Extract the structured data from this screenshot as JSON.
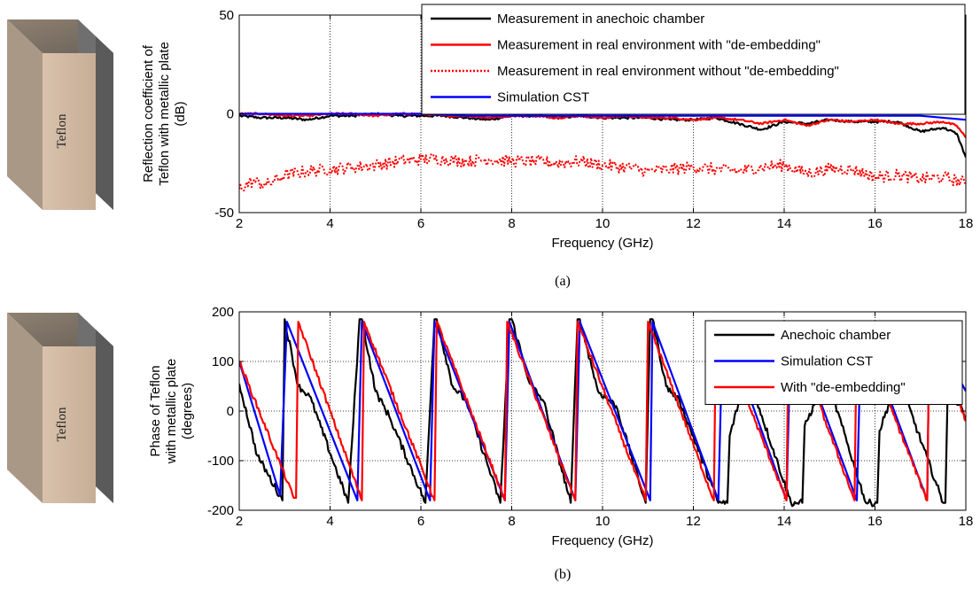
{
  "teflon_label": "Teflon",
  "panels": [
    {
      "caption": "(a)",
      "chart_data": {
        "type": "line",
        "xlabel": "Frequency (GHz)",
        "ylabel": [
          "Reflection coefficient of",
          "Teflon with metallic plate",
          "(dB)"
        ],
        "xlim": [
          2,
          18
        ],
        "ylim": [
          -50,
          50
        ],
        "xticks": [
          2,
          4,
          6,
          8,
          10,
          12,
          14,
          16,
          18
        ],
        "yticks": [
          -50,
          0,
          50
        ],
        "grid": true,
        "legend_position": "top-right",
        "series": [
          {
            "name": "Measurement in anechoic chamber",
            "color": "#000000",
            "style": "solid",
            "noise": 0.6,
            "x": [
              2,
              2.5,
              3,
              3.5,
              4,
              4.5,
              5,
              5.5,
              6,
              6.5,
              7,
              7.5,
              8,
              8.5,
              9,
              9.5,
              10,
              10.5,
              11,
              11.5,
              12,
              12.5,
              13,
              13.5,
              14,
              14.5,
              15,
              15.5,
              16,
              16.5,
              17,
              17.5,
              17.8,
              18
            ],
            "y": [
              -1,
              -2,
              -2,
              -3,
              -1,
              -1,
              0,
              -1,
              -1,
              -1,
              -2,
              -3,
              -1,
              -1,
              -2,
              -1,
              -2,
              -2,
              -2,
              -3,
              -3,
              -2,
              -5,
              -8,
              -4,
              -5,
              -3,
              -4,
              -4,
              -4,
              -9,
              -7,
              -10,
              -22
            ]
          },
          {
            "name": "Measurement in real environment with \"de-embedding\"",
            "color": "#ff0000",
            "style": "solid",
            "noise": 0.5,
            "x": [
              2,
              2.5,
              3,
              3.5,
              4,
              4.5,
              5,
              5.5,
              6,
              6.5,
              7,
              7.5,
              8,
              8.5,
              9,
              9.5,
              10,
              10.5,
              11,
              11.5,
              12,
              12.5,
              13,
              13.5,
              14,
              14.5,
              15,
              15.5,
              16,
              16.5,
              17,
              17.5,
              17.8,
              18
            ],
            "y": [
              0,
              0,
              -1,
              -1,
              0,
              0,
              -1,
              0,
              0,
              -1,
              -1,
              -2,
              -1,
              -1,
              -2,
              -1,
              -2,
              -1,
              -2,
              -2,
              -3,
              -2,
              -3,
              -5,
              -3,
              -6,
              -3,
              -4,
              -3,
              -5,
              -5,
              -4,
              -6,
              -12
            ]
          },
          {
            "name": "Measurement in real environment without \"de-embedding\"",
            "color": "#ff0000",
            "style": "dotted",
            "noise": 3,
            "x": [
              2,
              2.3,
              2.6,
              3,
              3.5,
              4,
              4.5,
              5,
              5.5,
              6,
              6.5,
              7,
              7.5,
              8,
              8.5,
              9,
              9.5,
              10,
              10.5,
              11,
              11.5,
              12,
              12.5,
              13,
              13.5,
              14,
              14.5,
              15,
              15.5,
              16,
              16.5,
              17,
              17.5,
              18
            ],
            "y": [
              -38,
              -34,
              -36,
              -31,
              -29,
              -28,
              -27,
              -26,
              -24,
              -23,
              -23,
              -24,
              -23,
              -24,
              -24,
              -25,
              -24,
              -26,
              -27,
              -29,
              -28,
              -27,
              -28,
              -29,
              -27,
              -26,
              -30,
              -28,
              -28,
              -32,
              -31,
              -33,
              -32,
              -35
            ]
          },
          {
            "name": "Simulation CST",
            "color": "#0000ff",
            "style": "solid",
            "noise": 0,
            "x": [
              2,
              3,
              4,
              5,
              6,
              7,
              8,
              9,
              10,
              11,
              12,
              13,
              14,
              15,
              16,
              17,
              18
            ],
            "y": [
              0,
              0,
              0,
              0,
              0,
              -1,
              -1,
              -1,
              -1,
              -1,
              -1,
              -1,
              -1,
              -1,
              -1,
              -1,
              -3
            ]
          }
        ]
      }
    },
    {
      "caption": "(b)",
      "chart_data": {
        "type": "line",
        "xlabel": "Frequency (GHz)",
        "ylabel": [
          "Phase of Teflon",
          "with metallic plate",
          "(degrees)"
        ],
        "xlim": [
          2,
          18
        ],
        "ylim": [
          -200,
          200
        ],
        "xticks": [
          2,
          4,
          6,
          8,
          10,
          12,
          14,
          16,
          18
        ],
        "yticks": [
          -200,
          -100,
          0,
          100,
          200
        ],
        "grid": true,
        "legend_position": "top-right",
        "series": [
          {
            "name": "Anechoic chamber",
            "color": "#000000",
            "style": "solid",
            "noise": 7,
            "x": [
              2,
              2.4,
              2.95,
              3.0,
              3.3,
              3.55,
              4.4,
              4.65,
              4.7,
              5.0,
              5.3,
              6.1,
              6.3,
              6.35,
              6.7,
              7.0,
              7.75,
              7.95,
              8.0,
              8.4,
              8.7,
              9.3,
              9.45,
              9.5,
              9.9,
              10.3,
              10.95,
              11.05,
              11.1,
              11.4,
              11.7,
              12.55,
              12.75,
              12.8,
              13.1,
              13.4,
              14.15,
              14.4,
              14.45,
              14.8,
              15.1,
              15.8,
              16.05,
              16.1,
              16.4,
              16.7,
              17.5,
              17.55,
              17.6,
              17.9,
              18.0
            ],
            "y": [
              55,
              -90,
              -180,
              185,
              50,
              30,
              -185,
              185,
              185,
              40,
              -10,
              -185,
              185,
              185,
              50,
              20,
              -185,
              185,
              185,
              55,
              20,
              -185,
              185,
              185,
              40,
              10,
              -185,
              185,
              185,
              50,
              20,
              -185,
              -185,
              -50,
              50,
              20,
              -185,
              -185,
              -30,
              40,
              20,
              -185,
              -185,
              -40,
              40,
              20,
              -185,
              -185,
              40,
              10,
              -20
            ]
          },
          {
            "name": "Simulation CST",
            "color": "#0000ff",
            "style": "solid",
            "noise": 0,
            "x": [
              2,
              2.9,
              3.05,
              4.6,
              4.7,
              6.2,
              6.3,
              7.85,
              7.95,
              9.4,
              9.5,
              11.05,
              11.1,
              12.55,
              12.65,
              14.05,
              14.15,
              15.6,
              15.7,
              17.15,
              17.2,
              18.0
            ],
            "y": [
              100,
              -170,
              180,
              -180,
              180,
              -180,
              180,
              -180,
              180,
              -180,
              180,
              -180,
              180,
              -180,
              180,
              -180,
              180,
              -180,
              180,
              -180,
              180,
              40
            ]
          },
          {
            "name": "With \"de-embedding\"",
            "color": "#ff0000",
            "style": "solid",
            "noise": 5,
            "x": [
              2,
              3.2,
              3.25,
              3.3,
              4.7,
              4.75,
              6.3,
              6.35,
              7.85,
              7.9,
              9.4,
              9.45,
              10.95,
              11.0,
              12.45,
              12.5,
              14.05,
              14.1,
              15.55,
              15.6,
              17.15,
              17.2,
              18.0
            ],
            "y": [
              100,
              -175,
              -175,
              180,
              -180,
              180,
              -180,
              180,
              -180,
              180,
              -180,
              180,
              -180,
              180,
              -180,
              180,
              -180,
              180,
              -180,
              180,
              -180,
              180,
              -20
            ]
          }
        ]
      }
    }
  ]
}
